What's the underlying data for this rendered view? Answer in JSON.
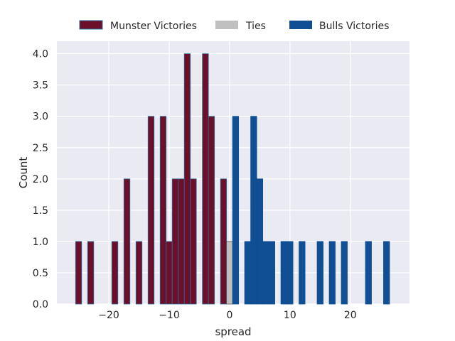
{
  "chart_data": {
    "type": "bar",
    "xlabel": "spread",
    "ylabel": "Count",
    "xlim": [
      -28.6,
      29.8
    ],
    "ylim": [
      0,
      4.2
    ],
    "xticks": [
      -20,
      -10,
      0,
      10,
      20
    ],
    "xtick_labels": [
      "−20",
      "−10",
      "0",
      "10",
      "20"
    ],
    "yticks": [
      0,
      0.5,
      1,
      1.5,
      2,
      2.5,
      3,
      3.5,
      4
    ],
    "ytick_labels": [
      "0.0",
      "0.5",
      "1.0",
      "1.5",
      "2.0",
      "2.5",
      "3.0",
      "3.5",
      "4.0"
    ],
    "grid": true,
    "legend_position": "top-center",
    "bar_width": 1,
    "series": [
      {
        "name": "Munster Victories",
        "color": "#6b0f2a",
        "edge_color": "#2b6f9a",
        "x": [
          -25,
          -23,
          -19,
          -17,
          -15,
          -13,
          -11,
          -10,
          -9,
          -8,
          -7,
          -6,
          -4,
          -3,
          -1
        ],
        "values": [
          1,
          1,
          1,
          2,
          1,
          3,
          3,
          1,
          2,
          2,
          4,
          2,
          4,
          3,
          2
        ]
      },
      {
        "name": "Ties",
        "color": "#c0c0c0",
        "edge_color": "#555555",
        "x": [
          0
        ],
        "values": [
          1
        ]
      },
      {
        "name": "Bulls Victories",
        "color": "#114f94",
        "edge_color": "#114f94",
        "x": [
          1,
          3,
          4,
          5,
          6,
          7,
          9,
          10,
          12,
          15,
          17,
          19,
          23,
          26
        ],
        "values": [
          3,
          1,
          3,
          2,
          1,
          1,
          1,
          1,
          1,
          1,
          1,
          1,
          1,
          1
        ]
      }
    ]
  }
}
